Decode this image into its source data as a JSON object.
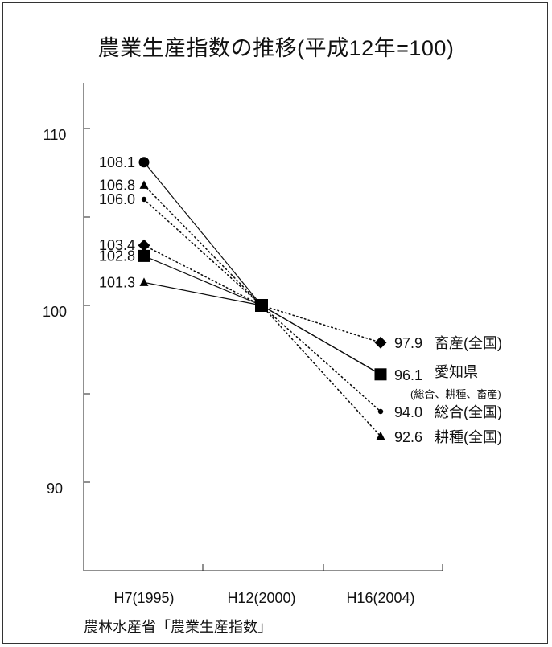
{
  "chart_data": {
    "type": "line",
    "title": "農業生産指数の推移(平成12年=100)",
    "source": "農林水産省「農業生産指数」",
    "categories": [
      "H7(1995)",
      "H12(2000)",
      "H16(2004)"
    ],
    "ylim": [
      88,
      114
    ],
    "yticks": [
      110,
      100,
      90
    ],
    "series": [
      {
        "key": "aichi_total",
        "values": [
          102.8,
          100,
          96.1
        ],
        "style": "solid",
        "marker": "square",
        "labels": [
          "102.8",
          "",
          "96.1"
        ],
        "end_label": "愛知県",
        "end_note": "(総合、耕種、畜産)"
      },
      {
        "key": "aichi_crops",
        "values": [
          101.3,
          100,
          96.1
        ],
        "style": "solid",
        "marker": "triangle",
        "labels": [
          "101.3",
          "",
          ""
        ]
      },
      {
        "key": "aichi_livestock",
        "values": [
          108.1,
          100,
          96.1
        ],
        "style": "solid",
        "marker": "circle",
        "labels": [
          "108.1",
          "",
          ""
        ]
      },
      {
        "key": "nat_livestock",
        "values": [
          103.4,
          100,
          97.9
        ],
        "style": "dotted",
        "marker": "diamond",
        "labels": [
          "103.4",
          "",
          "97.9"
        ],
        "end_label": "畜産(全国)"
      },
      {
        "key": "nat_total",
        "values": [
          106.0,
          100,
          94.0
        ],
        "style": "dotted",
        "marker": "dot",
        "labels": [
          "106.0",
          "",
          "94.0"
        ],
        "end_label": "総合(全国)"
      },
      {
        "key": "nat_crops",
        "values": [
          106.8,
          100,
          92.6
        ],
        "style": "dotted",
        "marker": "triangle",
        "labels": [
          "106.8",
          "",
          "92.6"
        ],
        "end_label": "耕種(全国)"
      }
    ]
  }
}
